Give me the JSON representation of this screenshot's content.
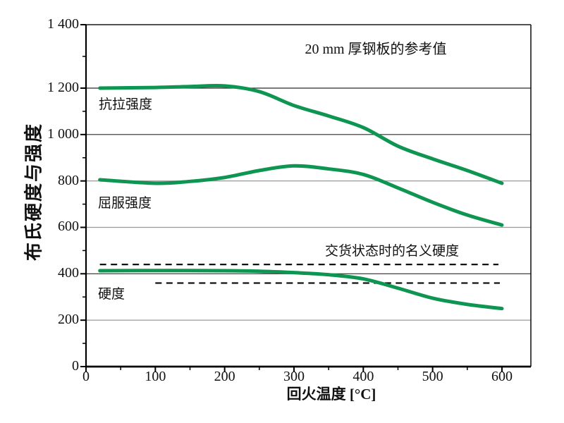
{
  "chart_data": {
    "type": "line",
    "annotation": "20 mm 厚钢板的参考值",
    "xlabel": "回火温度 [°C]",
    "ylabel": "布氏硬度与强度",
    "xlim": [
      0,
      642
    ],
    "ylim": [
      0,
      1400
    ],
    "grid": "horizontal-only",
    "legend_position": "labels-on-curves",
    "line_color": "#0E9552",
    "x_ticks": {
      "values": [
        0,
        100,
        200,
        300,
        400,
        500,
        600
      ],
      "labels": [
        "0",
        "100",
        "200",
        "300",
        "400",
        "500",
        "600"
      ],
      "minor": [
        50,
        150,
        250,
        350,
        450,
        550
      ]
    },
    "y_ticks": {
      "values": [
        0,
        200,
        400,
        600,
        800,
        1000,
        1200,
        1400
      ],
      "labels": [
        "0",
        "200",
        "400",
        "600",
        "800",
        "1 000",
        "1 200",
        "1 400"
      ],
      "minor": [
        100,
        300,
        500,
        700,
        900,
        1100,
        1300
      ]
    },
    "series": [
      {
        "key": "tensile-strength",
        "name": "抗拉强度",
        "x": [
          20,
          100,
          150,
          200,
          250,
          300,
          350,
          400,
          450,
          500,
          550,
          600
        ],
        "values": [
          1200,
          1202,
          1205,
          1207,
          1185,
          1125,
          1080,
          1030,
          950,
          895,
          845,
          790
        ]
      },
      {
        "key": "yield-strength",
        "name": "屈服强度",
        "x": [
          20,
          100,
          150,
          200,
          250,
          300,
          350,
          400,
          450,
          500,
          550,
          600
        ],
        "values": [
          805,
          790,
          798,
          815,
          845,
          865,
          852,
          828,
          770,
          708,
          653,
          610
        ]
      },
      {
        "key": "hardness",
        "name": "硬度",
        "x": [
          20,
          100,
          200,
          250,
          300,
          350,
          400,
          450,
          500,
          550,
          600
        ],
        "values": [
          413,
          414,
          413,
          411,
          405,
          396,
          378,
          338,
          295,
          268,
          250
        ]
      }
    ],
    "reference_lines": [
      {
        "label": "交货状态时的名义硬度",
        "value": 440,
        "x_start": 20,
        "x_end": 595,
        "style": "dashed"
      },
      {
        "label": "",
        "value": 360,
        "x_start": 100,
        "x_end": 597,
        "style": "dashed"
      }
    ]
  }
}
